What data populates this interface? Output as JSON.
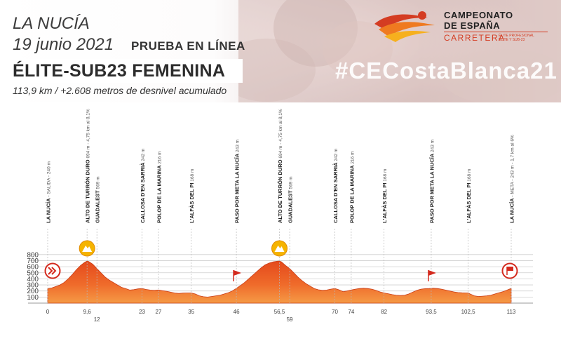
{
  "header": {
    "city": "LA NUCÍA",
    "date": "19 junio 2021",
    "race_type": "PRUEBA EN LÍNEA",
    "category": "ÉLITE-SUB23 FEMENINA",
    "distance": "113,9 km / +2.608 metros de desnivel acumulado",
    "hashtag": "#CECostaBlanca21"
  },
  "logo": {
    "line1": "CAMPEONATO",
    "line2": "DE ESPAÑA",
    "line3": "CARRETERA",
    "line4": "ÉLITE PROFESIONAL ÉLITE Y SUB-23"
  },
  "colors": {
    "profile_top": "#e84a1c",
    "profile_bottom": "#f7a048",
    "accent_red": "#d42a1e",
    "climb_icon": "#f5b400"
  },
  "chart_data": {
    "type": "area",
    "title": "",
    "xlabel": "",
    "ylabel": "",
    "xlim": [
      0,
      113.9
    ],
    "ylim": [
      0,
      800
    ],
    "y_ticks": [
      100,
      200,
      300,
      400,
      500,
      600,
      700,
      800
    ],
    "x_ticks_row1": [
      "0",
      "9,6",
      "23",
      "27",
      "35",
      "46",
      "56,5",
      "70",
      "74",
      "82",
      "93,5",
      "102,5",
      "113"
    ],
    "x_ticks_row2": [
      "12",
      "59"
    ],
    "profile": [
      [
        0,
        240
      ],
      [
        1,
        250
      ],
      [
        2,
        275
      ],
      [
        3,
        300
      ],
      [
        4,
        340
      ],
      [
        5,
        400
      ],
      [
        6,
        470
      ],
      [
        7,
        550
      ],
      [
        8,
        620
      ],
      [
        9,
        670
      ],
      [
        9.6,
        694
      ],
      [
        10,
        685
      ],
      [
        11,
        640
      ],
      [
        12,
        569
      ],
      [
        13,
        500
      ],
      [
        14,
        430
      ],
      [
        15,
        380
      ],
      [
        16,
        340
      ],
      [
        17,
        300
      ],
      [
        18,
        260
      ],
      [
        19,
        240
      ],
      [
        20,
        215
      ],
      [
        21,
        222
      ],
      [
        22,
        235
      ],
      [
        23,
        242
      ],
      [
        24,
        225
      ],
      [
        25,
        215
      ],
      [
        26,
        210
      ],
      [
        27,
        216
      ],
      [
        28,
        205
      ],
      [
        29,
        195
      ],
      [
        30,
        180
      ],
      [
        31,
        165
      ],
      [
        32,
        160
      ],
      [
        33,
        165
      ],
      [
        34,
        168
      ],
      [
        35,
        168
      ],
      [
        36,
        150
      ],
      [
        37,
        120
      ],
      [
        38,
        105
      ],
      [
        39,
        100
      ],
      [
        40,
        110
      ],
      [
        41,
        120
      ],
      [
        42,
        130
      ],
      [
        43,
        150
      ],
      [
        44,
        170
      ],
      [
        45,
        200
      ],
      [
        46,
        243
      ],
      [
        47,
        290
      ],
      [
        48,
        340
      ],
      [
        49,
        400
      ],
      [
        50,
        460
      ],
      [
        51,
        520
      ],
      [
        52,
        580
      ],
      [
        53,
        630
      ],
      [
        54,
        660
      ],
      [
        55,
        680
      ],
      [
        56,
        690
      ],
      [
        56.5,
        694
      ],
      [
        57,
        680
      ],
      [
        58,
        620
      ],
      [
        59,
        569
      ],
      [
        60,
        500
      ],
      [
        61,
        430
      ],
      [
        62,
        370
      ],
      [
        63,
        320
      ],
      [
        64,
        280
      ],
      [
        65,
        240
      ],
      [
        66,
        220
      ],
      [
        67,
        210
      ],
      [
        68,
        215
      ],
      [
        69,
        230
      ],
      [
        70,
        242
      ],
      [
        71,
        220
      ],
      [
        72,
        190
      ],
      [
        73,
        200
      ],
      [
        74,
        216
      ],
      [
        75,
        230
      ],
      [
        76,
        240
      ],
      [
        77,
        245
      ],
      [
        78,
        240
      ],
      [
        79,
        230
      ],
      [
        80,
        210
      ],
      [
        81,
        185
      ],
      [
        82,
        168
      ],
      [
        83,
        155
      ],
      [
        84,
        140
      ],
      [
        85,
        130
      ],
      [
        86,
        125
      ],
      [
        87,
        130
      ],
      [
        88,
        150
      ],
      [
        89,
        180
      ],
      [
        90,
        210
      ],
      [
        91,
        230
      ],
      [
        92,
        238
      ],
      [
        93,
        240
      ],
      [
        93.5,
        243
      ],
      [
        94,
        245
      ],
      [
        95,
        240
      ],
      [
        96,
        230
      ],
      [
        97,
        215
      ],
      [
        98,
        200
      ],
      [
        99,
        185
      ],
      [
        100,
        175
      ],
      [
        101,
        170
      ],
      [
        102,
        168
      ],
      [
        102.5,
        168
      ],
      [
        103,
        150
      ],
      [
        104,
        120
      ],
      [
        105,
        110
      ],
      [
        106,
        115
      ],
      [
        107,
        120
      ],
      [
        108,
        130
      ],
      [
        109,
        150
      ],
      [
        110,
        170
      ],
      [
        111,
        190
      ],
      [
        112,
        215
      ],
      [
        113,
        243
      ]
    ],
    "waypoints": [
      {
        "km": 0,
        "label": "LA NUCÍA",
        "detail": " - SALIDA - 240 m"
      },
      {
        "km": 9.6,
        "label": "ALTO DE TURRÓN DURO",
        "detail": " 694 m - 4,75 km al 8,1%"
      },
      {
        "km": 12,
        "label": "GUADALEST",
        "detail": " 569 m"
      },
      {
        "km": 23,
        "label": "CALLOSA D'EN SARRIÀ",
        "detail": " 242 m"
      },
      {
        "km": 27,
        "label": "POLOP DE LA MARINA",
        "detail": " 216 m"
      },
      {
        "km": 35,
        "label": "L'ALFÀS DEL PI",
        "detail": " 168 m"
      },
      {
        "km": 46,
        "label": "PASO POR META LA NUCÍA",
        "detail": " 243 m"
      },
      {
        "km": 56.5,
        "label": "ALTO DE TURRÓN DURO",
        "detail": " 694 m - 4,75 km al 8,1%"
      },
      {
        "km": 59,
        "label": "GUADALEST",
        "detail": " 569 m"
      },
      {
        "km": 70,
        "label": "CALLOSA D'EN SARRIÀ",
        "detail": " 242 m"
      },
      {
        "km": 74,
        "label": "POLOP DE LA MARINA",
        "detail": " 216 m"
      },
      {
        "km": 82,
        "label": "L'ALFÀS DEL PI",
        "detail": " 168 m"
      },
      {
        "km": 93.5,
        "label": "PASO POR META LA NUCÍA",
        "detail": " 243 m"
      },
      {
        "km": 102.5,
        "label": "L'ALFÀS DEL PI",
        "detail": " 168 m"
      },
      {
        "km": 113,
        "label": "LA NUCÍA",
        "detail": " - META - 243 m - 1,7 km al 6%"
      }
    ],
    "markers": [
      {
        "km": 0,
        "icon": "start-icon"
      },
      {
        "km": 9.6,
        "icon": "climb-icon"
      },
      {
        "km": 46,
        "icon": "flag-icon"
      },
      {
        "km": 56.5,
        "icon": "climb-icon"
      },
      {
        "km": 93.5,
        "icon": "flag-icon"
      },
      {
        "km": 113,
        "icon": "finish-icon"
      }
    ]
  }
}
